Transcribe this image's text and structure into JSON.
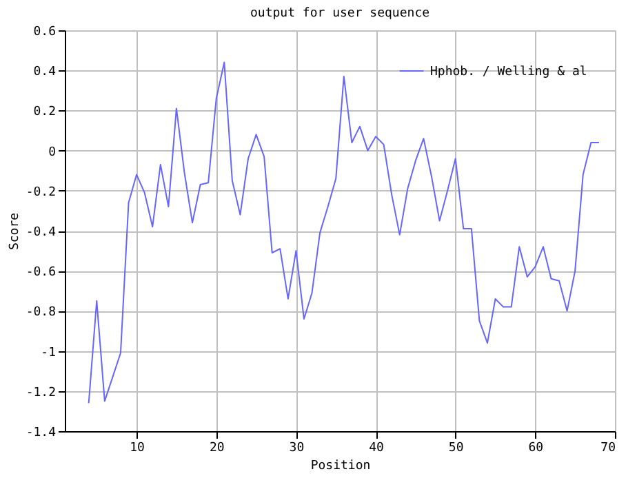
{
  "chart_data": {
    "type": "line",
    "title": "output for user sequence",
    "xlabel": "Position",
    "ylabel": "Score",
    "x": [
      4,
      5,
      6,
      7,
      8,
      9,
      10,
      11,
      12,
      13,
      14,
      15,
      16,
      17,
      18,
      19,
      20,
      21,
      22,
      23,
      24,
      25,
      26,
      27,
      28,
      29,
      30,
      31,
      32,
      33,
      34,
      35,
      36,
      37,
      38,
      39,
      40,
      41,
      42,
      43,
      44,
      45,
      46,
      47,
      48,
      49,
      50,
      51,
      52,
      53,
      54,
      55,
      56,
      57,
      58,
      59,
      60,
      61,
      62,
      63,
      64,
      65,
      66,
      67,
      68
    ],
    "series": [
      {
        "name": "Hphob. / Welling & al",
        "color": "#6666ff",
        "values": [
          -1.26,
          -0.75,
          -1.25,
          -1.13,
          -1.01,
          -0.26,
          -0.12,
          -0.21,
          -0.38,
          -0.07,
          -0.28,
          0.21,
          -0.11,
          -0.36,
          -0.17,
          -0.16,
          0.26,
          0.44,
          -0.15,
          -0.32,
          -0.04,
          0.08,
          -0.03,
          -0.51,
          -0.49,
          -0.74,
          -0.5,
          -0.84,
          -0.71,
          -0.41,
          -0.28,
          -0.14,
          0.37,
          0.04,
          0.12,
          0.0,
          0.07,
          0.03,
          -0.22,
          -0.42,
          -0.19,
          -0.05,
          0.06,
          -0.13,
          -0.35,
          -0.2,
          -0.04,
          -0.39,
          -0.39,
          -0.85,
          -0.96,
          -0.74,
          -0.78,
          -0.78,
          -0.48,
          -0.63,
          -0.58,
          -0.48,
          -0.64,
          -0.65,
          -0.8,
          -0.6,
          -0.12,
          0.04,
          0.04
        ]
      }
    ],
    "xlim": [
      1,
      70
    ],
    "xticks": [
      10,
      20,
      30,
      40,
      50,
      60,
      70
    ],
    "ylim": [
      -1.4,
      0.6
    ],
    "yticks": [
      -1.4,
      -1.2,
      -1,
      -0.8,
      -0.6,
      -0.4,
      -0.2,
      0,
      0.2,
      0.4,
      0.6
    ],
    "grid": true,
    "legend": "top right",
    "marker": "none",
    "line_style": "solid"
  }
}
